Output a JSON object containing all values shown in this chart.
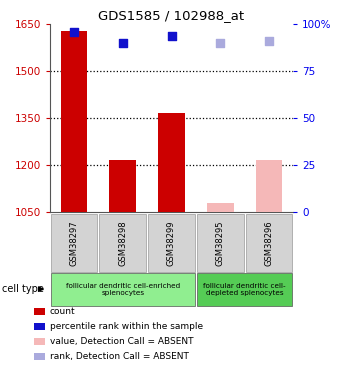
{
  "title": "GDS1585 / 102988_at",
  "samples": [
    "GSM38297",
    "GSM38298",
    "GSM38299",
    "GSM38295",
    "GSM38296"
  ],
  "bar_values": [
    1630,
    1215,
    1365,
    1078,
    1215
  ],
  "bar_colors": [
    "#cc0000",
    "#cc0000",
    "#cc0000",
    "#f5b8b8",
    "#f5b8b8"
  ],
  "dot_right_vals": [
    96,
    90,
    94,
    90,
    91
  ],
  "dot_colors": [
    "#1111cc",
    "#1111cc",
    "#1111cc",
    "#aaaadd",
    "#aaaadd"
  ],
  "ylim_left": [
    1050,
    1650
  ],
  "ylim_right": [
    0,
    100
  ],
  "yticks_left": [
    1050,
    1200,
    1350,
    1500,
    1650
  ],
  "yticks_right": [
    0,
    25,
    50,
    75,
    100
  ],
  "ytick_labels_right": [
    "0",
    "25",
    "50",
    "75",
    "100%"
  ],
  "legend_items": [
    {
      "color": "#cc0000",
      "label": "count"
    },
    {
      "color": "#1111cc",
      "label": "percentile rank within the sample"
    },
    {
      "color": "#f5b8b8",
      "label": "value, Detection Call = ABSENT"
    },
    {
      "color": "#aaaadd",
      "label": "rank, Detection Call = ABSENT"
    }
  ],
  "bar_width": 0.55,
  "dotsize": 30,
  "background_color": "#ffffff",
  "tick_color_left": "#cc0000",
  "tick_color_right": "#0000ee",
  "cell_groups": [
    {
      "xstart": 0,
      "xend": 3,
      "label": "follicular dendritic cell-enriched\nsplenocytes",
      "color": "#90ee90"
    },
    {
      "xstart": 3,
      "xend": 5,
      "label": "follicular dendritic cell-\ndepleted splenocytes",
      "color": "#55cc55"
    }
  ]
}
